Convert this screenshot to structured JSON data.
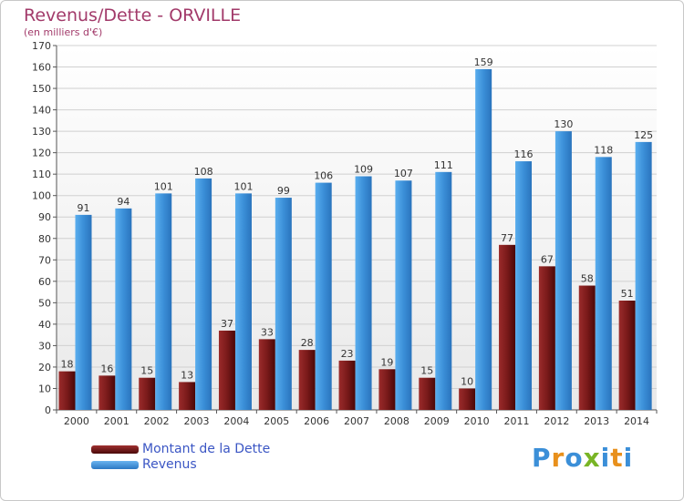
{
  "chart_data": {
    "type": "bar",
    "title": "Revenus/Dette - ORVILLE",
    "subtitle": "(en milliers d'€)",
    "categories": [
      "2000",
      "2001",
      "2002",
      "2003",
      "2004",
      "2005",
      "2006",
      "2007",
      "2008",
      "2009",
      "2010",
      "2011",
      "2012",
      "2013",
      "2014"
    ],
    "series": [
      {
        "name": "Montant de la Dette",
        "color": "#7a1a1a",
        "values": [
          18,
          16,
          15,
          13,
          37,
          33,
          28,
          23,
          19,
          15,
          10,
          77,
          67,
          58,
          51
        ]
      },
      {
        "name": "Revenus",
        "color": "#3b8fd8",
        "values": [
          91,
          94,
          101,
          108,
          101,
          99,
          106,
          109,
          107,
          111,
          159,
          116,
          130,
          118,
          125
        ]
      }
    ],
    "ylim": [
      0,
      170
    ],
    "yticks": [
      0,
      10,
      20,
      30,
      40,
      50,
      60,
      70,
      80,
      90,
      100,
      110,
      120,
      130,
      140,
      150,
      160,
      170
    ],
    "grid": true,
    "legend_position": "bottom-left"
  },
  "logo": {
    "letters": [
      {
        "char": "P",
        "color": "#3b8fd8"
      },
      {
        "char": "r",
        "color": "#e8901c"
      },
      {
        "char": "o",
        "color": "#3b8fd8"
      },
      {
        "char": "x",
        "color": "#79b526"
      },
      {
        "char": "i",
        "color": "#3b8fd8"
      },
      {
        "char": "t",
        "color": "#e8901c"
      },
      {
        "char": "i",
        "color": "#3b8fd8"
      }
    ]
  }
}
